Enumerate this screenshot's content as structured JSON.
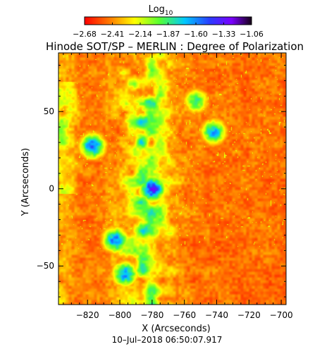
{
  "chart_data": {
    "type": "heatmap",
    "title": "Hinode SOT/SP – MERLIN : Degree of Polarization",
    "xlabel": "X (Arcseconds)",
    "ylabel": "Y (Arcseconds)",
    "timestamp": "10–Jul–2018 06:50:07.917",
    "xlim": [
      -838,
      -697
    ],
    "ylim": [
      -75,
      88
    ],
    "x_ticks": [
      -820,
      -800,
      -780,
      -760,
      -740,
      -720,
      -700
    ],
    "y_ticks": [
      -50,
      0,
      50
    ],
    "colorbar": {
      "label_main": "Log",
      "label_sub": "10",
      "range": [
        -2.68,
        -1.06
      ],
      "ticks": [
        "-2.68",
        "-2.41",
        "-2.14",
        "-1.87",
        "-1.60",
        "-1.33",
        "-1.06"
      ]
    },
    "features": [
      {
        "x": -780,
        "y": 0,
        "value": -1.2
      },
      {
        "x": -817,
        "y": 28,
        "value": -1.35
      },
      {
        "x": -803,
        "y": -33,
        "value": -1.4
      },
      {
        "x": -797,
        "y": -55,
        "value": -1.45
      },
      {
        "x": -742,
        "y": 37,
        "value": -1.55
      },
      {
        "x": -753,
        "y": 57,
        "value": -1.75
      }
    ]
  }
}
